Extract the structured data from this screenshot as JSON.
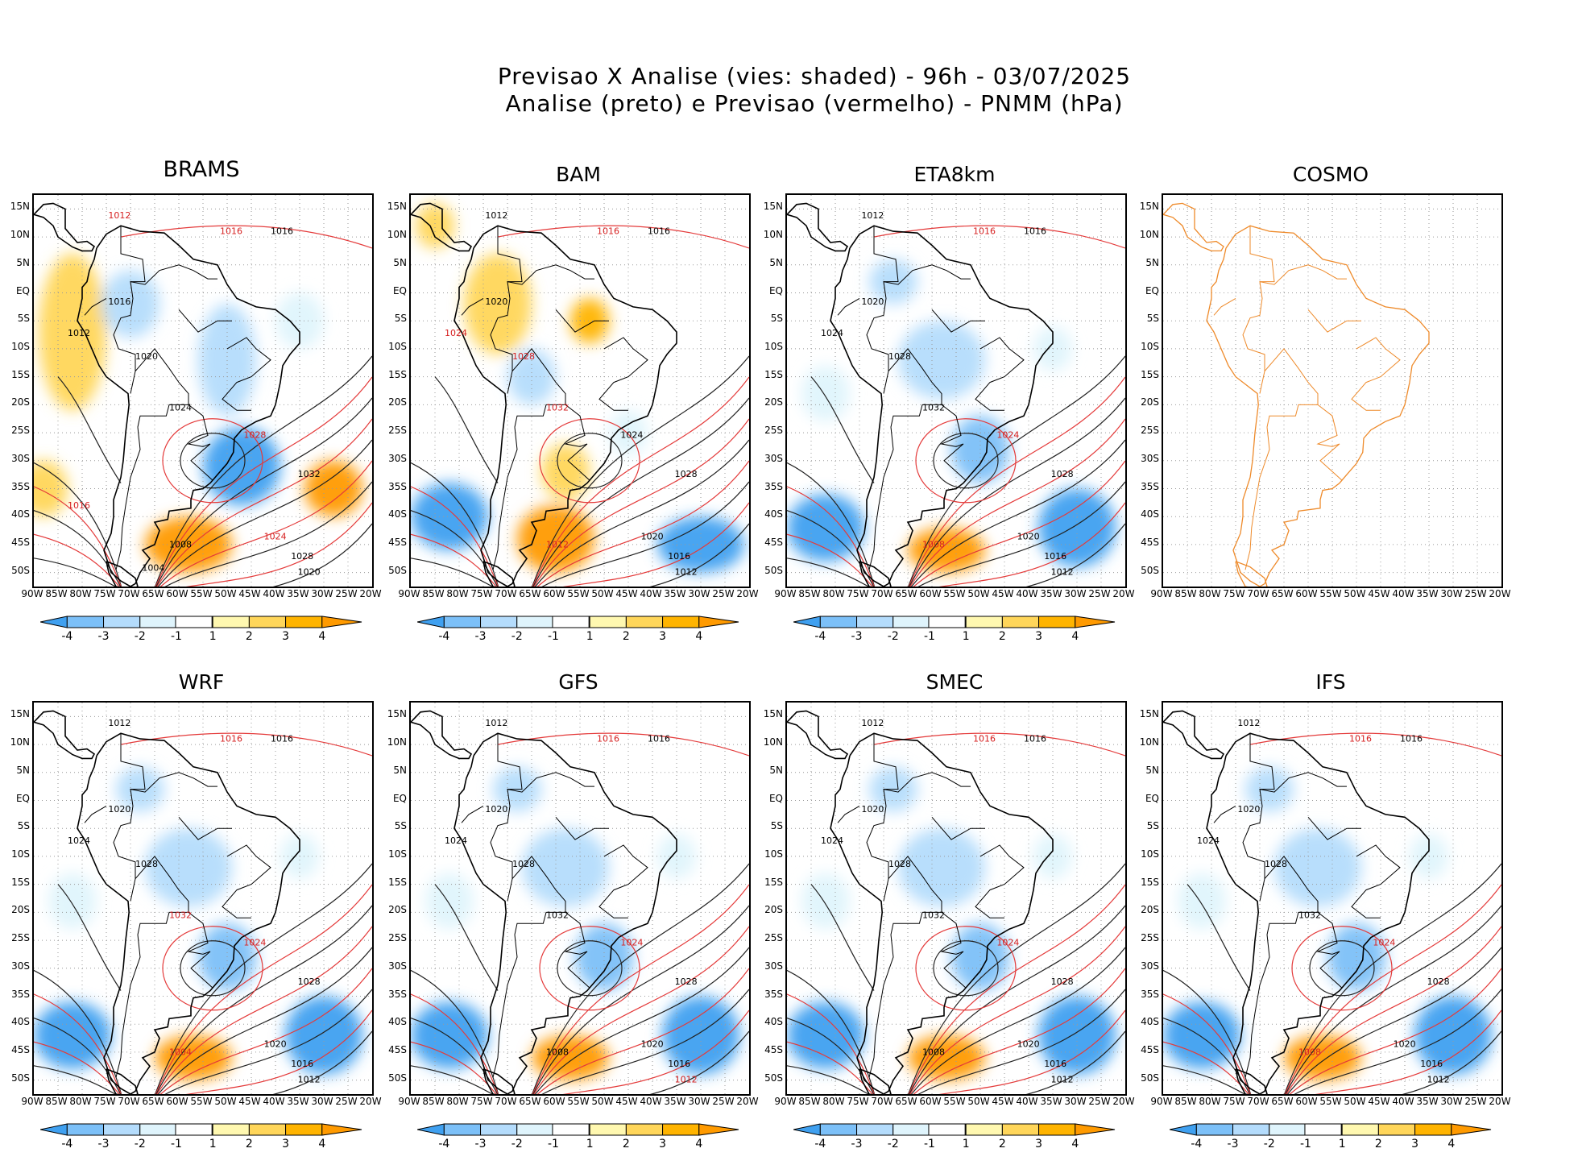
{
  "title_line1": "Previsao X Analise (vies: shaded) - 96h - 03/07/2025",
  "title_line2": "Analise (preto) e Previsao (vermelho) - PNMM (hPa)",
  "lat_labels": [
    "15N",
    "10N",
    "5N",
    "EQ",
    "5S",
    "10S",
    "15S",
    "20S",
    "25S",
    "30S",
    "35S",
    "40S",
    "45S",
    "50S"
  ],
  "lon_labels": [
    "90W",
    "85W",
    "80W",
    "75W",
    "70W",
    "65W",
    "60W",
    "55W",
    "50W",
    "45W",
    "40W",
    "35W",
    "30W",
    "25W",
    "20W"
  ],
  "colorbar_labels": [
    "-4",
    "-3",
    "-2",
    "-1",
    "1",
    "2",
    "3",
    "4"
  ],
  "colorbar_colors": [
    "#3fa0f0",
    "#7cc0f8",
    "#b4dcfc",
    "#dff4fc",
    "#ffffff",
    "#fff8b0",
    "#ffd65a",
    "#ffb400",
    "#ff9a00"
  ],
  "panels": [
    {
      "name": "BRAMS",
      "has_field": true,
      "bias": "warm-mixed",
      "labels": [
        {
          "t": "1012",
          "c": "red"
        },
        {
          "t": "1016",
          "c": "red"
        },
        {
          "t": "1016",
          "c": "black"
        },
        {
          "t": "1016",
          "c": "black"
        },
        {
          "t": "1012",
          "c": "black"
        },
        {
          "t": "1020",
          "c": "black"
        },
        {
          "t": "1024",
          "c": "black"
        },
        {
          "t": "1028",
          "c": "red"
        },
        {
          "t": "1032",
          "c": "black"
        },
        {
          "t": "1024",
          "c": "red"
        },
        {
          "t": "1028",
          "c": "black"
        },
        {
          "t": "1020",
          "c": "black"
        },
        {
          "t": "1008",
          "c": "black"
        },
        {
          "t": "1004",
          "c": "black"
        },
        {
          "t": "1016",
          "c": "red"
        }
      ]
    },
    {
      "name": "BAM",
      "has_field": true,
      "bias": "mixed",
      "labels": [
        {
          "t": "1012",
          "c": "black"
        },
        {
          "t": "1016",
          "c": "red"
        },
        {
          "t": "1016",
          "c": "black"
        },
        {
          "t": "1020",
          "c": "black"
        },
        {
          "t": "1024",
          "c": "red"
        },
        {
          "t": "1028",
          "c": "red"
        },
        {
          "t": "1032",
          "c": "red"
        },
        {
          "t": "1024",
          "c": "black"
        },
        {
          "t": "1028",
          "c": "black"
        },
        {
          "t": "1020",
          "c": "black"
        },
        {
          "t": "1016",
          "c": "black"
        },
        {
          "t": "1012",
          "c": "black"
        },
        {
          "t": "1012",
          "c": "red"
        }
      ]
    },
    {
      "name": "ETA8km",
      "has_field": true,
      "bias": "cold",
      "labels": [
        {
          "t": "1012",
          "c": "black"
        },
        {
          "t": "1016",
          "c": "red"
        },
        {
          "t": "1016",
          "c": "black"
        },
        {
          "t": "1020",
          "c": "black"
        },
        {
          "t": "1024",
          "c": "black"
        },
        {
          "t": "1028",
          "c": "black"
        },
        {
          "t": "1032",
          "c": "black"
        },
        {
          "t": "1024",
          "c": "red"
        },
        {
          "t": "1028",
          "c": "black"
        },
        {
          "t": "1020",
          "c": "black"
        },
        {
          "t": "1016",
          "c": "black"
        },
        {
          "t": "1012",
          "c": "black"
        },
        {
          "t": "1008",
          "c": "red"
        }
      ]
    },
    {
      "name": "COSMO",
      "has_field": false,
      "bias": "none",
      "labels": []
    },
    {
      "name": "WRF",
      "has_field": true,
      "bias": "cold",
      "labels": [
        {
          "t": "1012",
          "c": "black"
        },
        {
          "t": "1016",
          "c": "red"
        },
        {
          "t": "1016",
          "c": "black"
        },
        {
          "t": "1020",
          "c": "black"
        },
        {
          "t": "1024",
          "c": "black"
        },
        {
          "t": "1028",
          "c": "black"
        },
        {
          "t": "1032",
          "c": "red"
        },
        {
          "t": "1024",
          "c": "red"
        },
        {
          "t": "1028",
          "c": "black"
        },
        {
          "t": "1020",
          "c": "black"
        },
        {
          "t": "1016",
          "c": "black"
        },
        {
          "t": "1012",
          "c": "black"
        },
        {
          "t": "1004",
          "c": "red"
        }
      ]
    },
    {
      "name": "GFS",
      "has_field": true,
      "bias": "cold",
      "labels": [
        {
          "t": "1012",
          "c": "black"
        },
        {
          "t": "1016",
          "c": "red"
        },
        {
          "t": "1016",
          "c": "black"
        },
        {
          "t": "1020",
          "c": "black"
        },
        {
          "t": "1024",
          "c": "black"
        },
        {
          "t": "1028",
          "c": "black"
        },
        {
          "t": "1032",
          "c": "black"
        },
        {
          "t": "1024",
          "c": "red"
        },
        {
          "t": "1028",
          "c": "black"
        },
        {
          "t": "1020",
          "c": "black"
        },
        {
          "t": "1016",
          "c": "black"
        },
        {
          "t": "1012",
          "c": "red"
        },
        {
          "t": "1008",
          "c": "black"
        }
      ]
    },
    {
      "name": "SMEC",
      "has_field": true,
      "bias": "cold",
      "labels": [
        {
          "t": "1012",
          "c": "black"
        },
        {
          "t": "1016",
          "c": "red"
        },
        {
          "t": "1016",
          "c": "black"
        },
        {
          "t": "1020",
          "c": "black"
        },
        {
          "t": "1024",
          "c": "black"
        },
        {
          "t": "1028",
          "c": "black"
        },
        {
          "t": "1032",
          "c": "black"
        },
        {
          "t": "1024",
          "c": "red"
        },
        {
          "t": "1028",
          "c": "black"
        },
        {
          "t": "1020",
          "c": "black"
        },
        {
          "t": "1016",
          "c": "black"
        },
        {
          "t": "1012",
          "c": "black"
        },
        {
          "t": "1008",
          "c": "black"
        }
      ]
    },
    {
      "name": "IFS",
      "has_field": true,
      "bias": "cold",
      "labels": [
        {
          "t": "1012",
          "c": "black"
        },
        {
          "t": "1016",
          "c": "red"
        },
        {
          "t": "1016",
          "c": "black"
        },
        {
          "t": "1020",
          "c": "black"
        },
        {
          "t": "1024",
          "c": "black"
        },
        {
          "t": "1028",
          "c": "black"
        },
        {
          "t": "1032",
          "c": "black"
        },
        {
          "t": "1024",
          "c": "red"
        },
        {
          "t": "1028",
          "c": "black"
        },
        {
          "t": "1020",
          "c": "black"
        },
        {
          "t": "1016",
          "c": "black"
        },
        {
          "t": "1012",
          "c": "black"
        },
        {
          "t": "1008",
          "c": "red"
        }
      ]
    }
  ]
}
